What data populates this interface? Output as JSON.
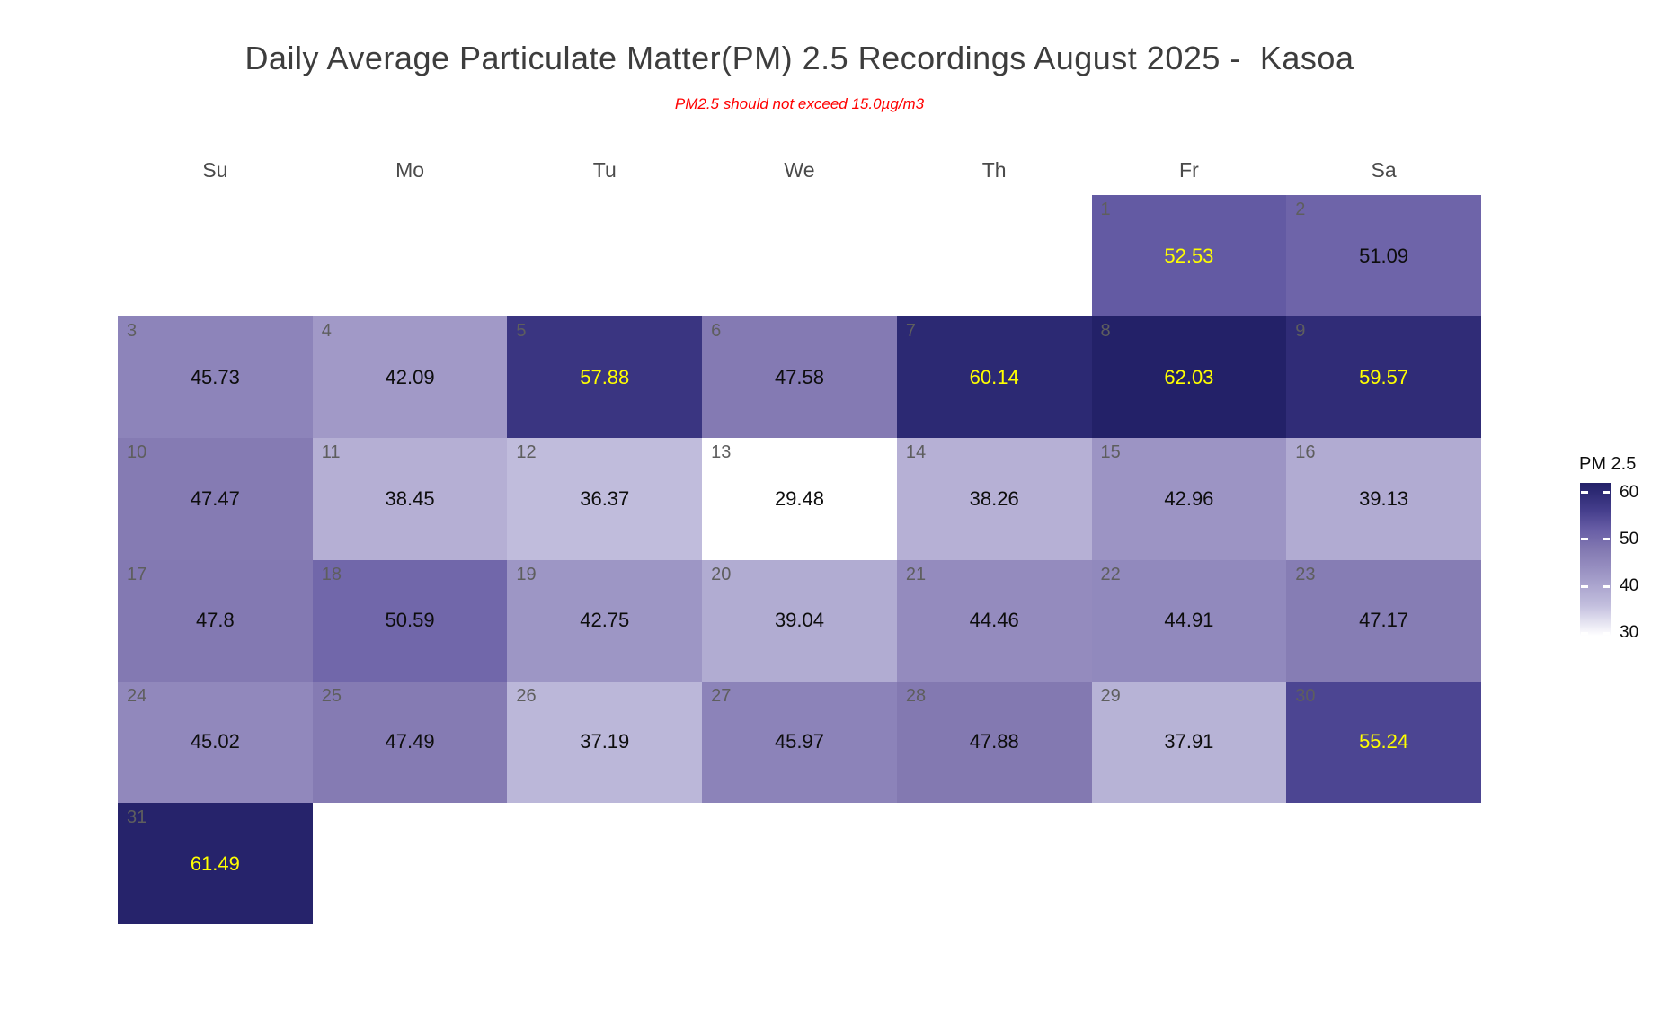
{
  "title": "Daily Average Particulate Matter(PM) 2.5 Recordings August 2025 -  Kasoa",
  "subtitle": "PM2.5 should not exceed 15.0µg/m3",
  "weekday_headers": [
    "Su",
    "Mo",
    "Tu",
    "We",
    "Th",
    "Fr",
    "Sa"
  ],
  "legend": {
    "title": "PM 2.5",
    "ticks": [
      60,
      50,
      40,
      30
    ]
  },
  "styles": {
    "background": "#ffffff",
    "title_color": "#3d3d3d",
    "subtitle_color": "#ff0000",
    "header_color": "#4a4a4a",
    "day_number_color": "#5e5e5e",
    "value_color_default": "#0d0d0d",
    "value_color_high": "#ffff00"
  },
  "chart_data": {
    "type": "heatmap",
    "subtype": "calendar-month",
    "month": "August 2025",
    "location": "Kasoa",
    "unit": "µg/m3",
    "guideline_note": "PM2.5 should not exceed 15.0µg/m3",
    "guideline_value": 15.0,
    "weekdays": [
      "Su",
      "Mo",
      "Tu",
      "We",
      "Th",
      "Fr",
      "Sa"
    ],
    "first_day_column": 5,
    "value_range": [
      29.48,
      62.03
    ],
    "legend_title": "PM 2.5",
    "legend_ticks": [
      60,
      50,
      40,
      30
    ],
    "high_label_min": 52,
    "days": [
      {
        "day": 1,
        "value": 52.53
      },
      {
        "day": 2,
        "value": 51.09
      },
      {
        "day": 3,
        "value": 45.73
      },
      {
        "day": 4,
        "value": 42.09
      },
      {
        "day": 5,
        "value": 57.88
      },
      {
        "day": 6,
        "value": 47.58
      },
      {
        "day": 7,
        "value": 60.14
      },
      {
        "day": 8,
        "value": 62.03
      },
      {
        "day": 9,
        "value": 59.57
      },
      {
        "day": 10,
        "value": 47.47
      },
      {
        "day": 11,
        "value": 38.45
      },
      {
        "day": 12,
        "value": 36.37
      },
      {
        "day": 13,
        "value": 29.48
      },
      {
        "day": 14,
        "value": 38.26
      },
      {
        "day": 15,
        "value": 42.96
      },
      {
        "day": 16,
        "value": 39.13
      },
      {
        "day": 17,
        "value": 47.8
      },
      {
        "day": 18,
        "value": 50.59
      },
      {
        "day": 19,
        "value": 42.75
      },
      {
        "day": 20,
        "value": 39.04
      },
      {
        "day": 21,
        "value": 44.46
      },
      {
        "day": 22,
        "value": 44.91
      },
      {
        "day": 23,
        "value": 47.17
      },
      {
        "day": 24,
        "value": 45.02
      },
      {
        "day": 25,
        "value": 47.49
      },
      {
        "day": 26,
        "value": 37.19
      },
      {
        "day": 27,
        "value": 45.97
      },
      {
        "day": 28,
        "value": 47.88
      },
      {
        "day": 29,
        "value": 37.91
      },
      {
        "day": 30,
        "value": 55.24
      },
      {
        "day": 31,
        "value": 61.49
      }
    ],
    "color_scale": {
      "anchors": [
        [
          29.48,
          "#ffffff"
        ],
        [
          36.0,
          "#c2bedd"
        ],
        [
          40.0,
          "#aca6cf"
        ],
        [
          44.0,
          "#968ec0"
        ],
        [
          48.0,
          "#8278b1"
        ],
        [
          52.0,
          "#685ea6"
        ],
        [
          56.0,
          "#463f8d"
        ],
        [
          60.0,
          "#2d2a74"
        ],
        [
          62.03,
          "#232168"
        ]
      ]
    }
  }
}
